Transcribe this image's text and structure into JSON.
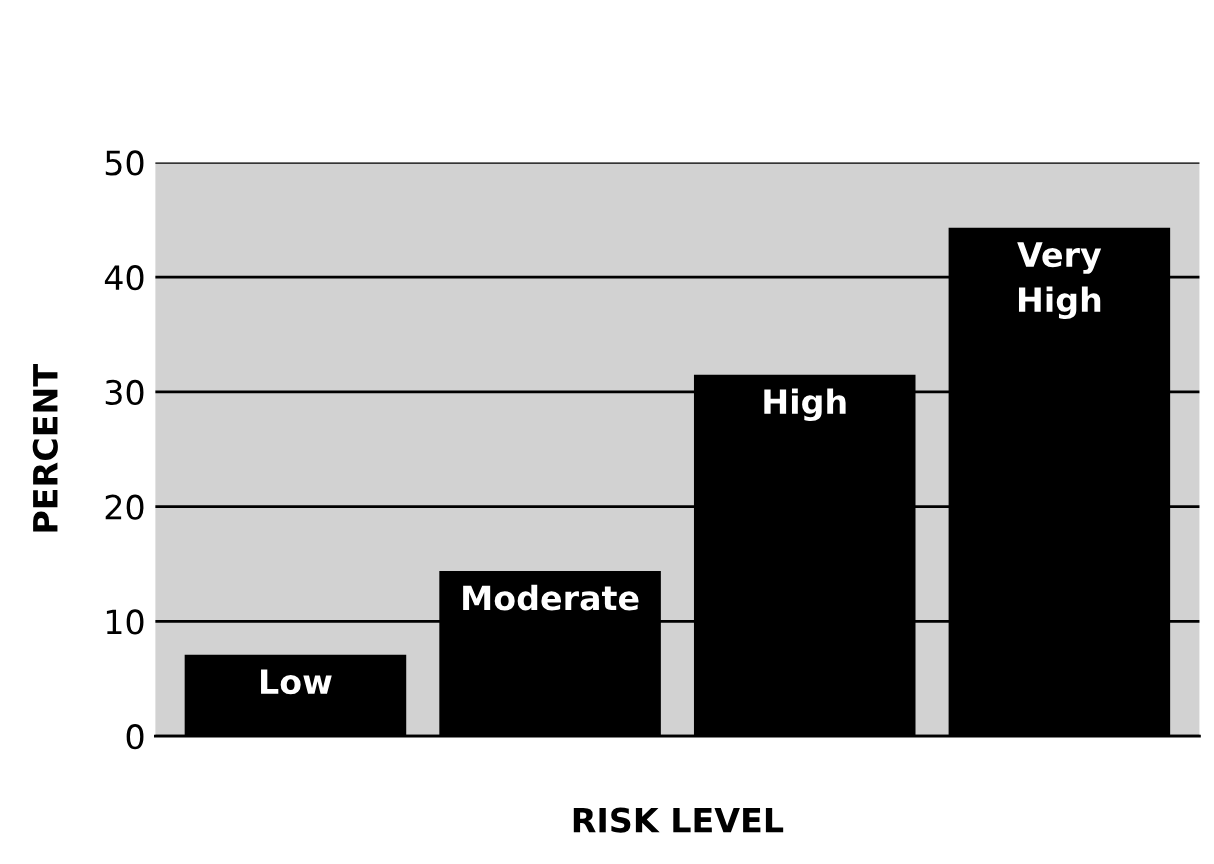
{
  "chart_data": {
    "type": "bar",
    "xlabel": "RISK LEVEL",
    "ylabel": "PERCENT",
    "categories": [
      "Low",
      "Moderate",
      "High",
      "Very\nHigh"
    ],
    "values": [
      7.1,
      14.4,
      31.5,
      44.3
    ],
    "color": "#000000",
    "ylim": [
      0,
      50
    ],
    "yticks": [
      0,
      10,
      20,
      30,
      40,
      50
    ],
    "grid": "y"
  }
}
